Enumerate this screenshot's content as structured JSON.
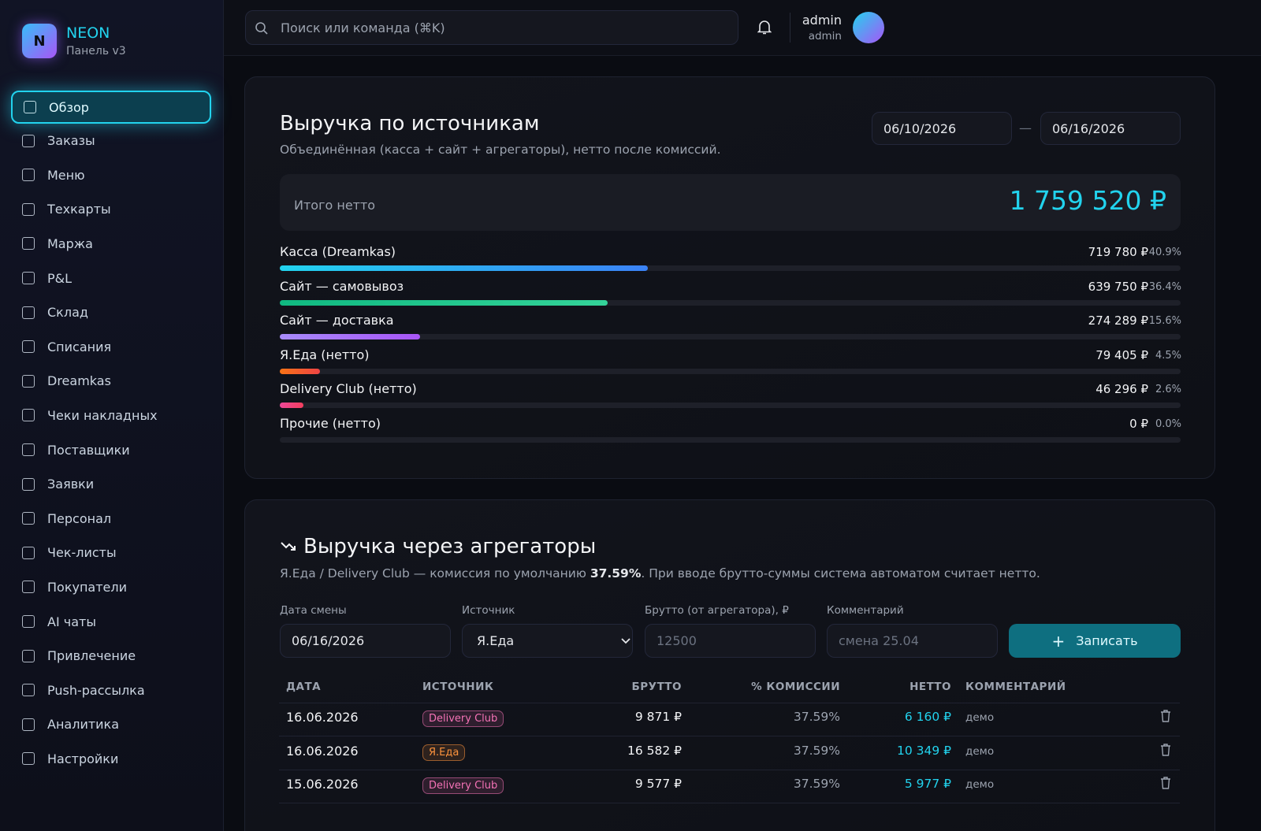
{
  "sidebar": {
    "logo_letter": "N",
    "brand": "NEON",
    "subtitle": "Панель v3",
    "nav": [
      "Обзор",
      "Заказы",
      "Меню",
      "Техкарты",
      "Маржа",
      "P&L",
      "Склад",
      "Списания",
      "Dreamkas",
      "Чеки накладных",
      "Поставщики",
      "Заявки",
      "Персонал",
      "Чек-листы",
      "Покупатели",
      "AI чаты",
      "Привлечение",
      "Push-рассылка",
      "Аналитика",
      "Настройки"
    ]
  },
  "topbar": {
    "search_placeholder": "Поиск или команда (⌘K)",
    "user_name": "admin",
    "user_role": "admin"
  },
  "revenue": {
    "title": "Выручка по источникам",
    "subtitle": "Объединённая (касса + сайт + агрегаторы), нетто после комиссий.",
    "date_from": "06/10/2026",
    "date_separator": "—",
    "date_to": "06/16/2026",
    "total_label": "Итого нетто",
    "total_value": "1 759 520 ₽",
    "sources": [
      {
        "name": "Касса (Dreamkas)",
        "amount": "719 780 ₽",
        "share": "40.9%",
        "colors": [
          "#22d3ee",
          "#3b82f6"
        ]
      },
      {
        "name": "Сайт — самовывоз",
        "amount": "639 750 ₽",
        "share": "36.4%",
        "colors": [
          "#10b981",
          "#34d399"
        ]
      },
      {
        "name": "Сайт — доставка",
        "amount": "274 289 ₽",
        "share": "15.6%",
        "colors": [
          "#a78bfa",
          "#a855f7"
        ]
      },
      {
        "name": "Я.Еда (нетто)",
        "amount": "79 405 ₽",
        "share": "4.5%",
        "colors": [
          "#f97316",
          "#ef4444"
        ]
      },
      {
        "name": "Delivery Club (нетто)",
        "amount": "46 296 ₽",
        "share": "2.6%",
        "colors": [
          "#ec4899",
          "#f43f5e"
        ]
      },
      {
        "name": "Прочие (нетто)",
        "amount": "0 ₽",
        "share": "0.0%",
        "colors": [
          "#64748b",
          "#64748b"
        ]
      }
    ]
  },
  "aggregators": {
    "title": "Выручка через агрегаторы",
    "description_before": "Я.Еда / Delivery Club — комиссия по умолчанию ",
    "description_bold": "37.59%",
    "description_after": ". При вводе брутто-суммы система автоматом считает нетто.",
    "form": {
      "date_label": "Дата смены",
      "date_value": "06/16/2026",
      "source_label": "Источник",
      "source_value": "Я.Еда",
      "gross_label": "Брутто (от агрегатора), ₽",
      "gross_placeholder": "12500",
      "comment_label": "Комментарий",
      "comment_placeholder": "смена 25.04",
      "button": "Записать"
    },
    "table": {
      "headers": [
        "ДАТА",
        "ИСТОЧНИК",
        "БРУТТО",
        "% КОМИССИИ",
        "НЕТТО",
        "КОММЕНТАРИЙ"
      ],
      "rows": [
        {
          "cells": [
            "16.06.2026",
            "Delivery Club",
            "9 871 ₽",
            "37.59%",
            "6 160 ₽",
            "демо"
          ],
          "badge_color": "#f472b6"
        },
        {
          "cells": [
            "16.06.2026",
            "Я.Еда",
            "16 582 ₽",
            "37.59%",
            "10 349 ₽",
            "демо"
          ],
          "badge_color": "#fb923c"
        },
        {
          "cells": [
            "15.06.2026",
            "Delivery Club",
            "9 577 ₽",
            "37.59%",
            "5 977 ₽",
            "демо"
          ],
          "badge_color": "#f472b6"
        }
      ]
    }
  }
}
